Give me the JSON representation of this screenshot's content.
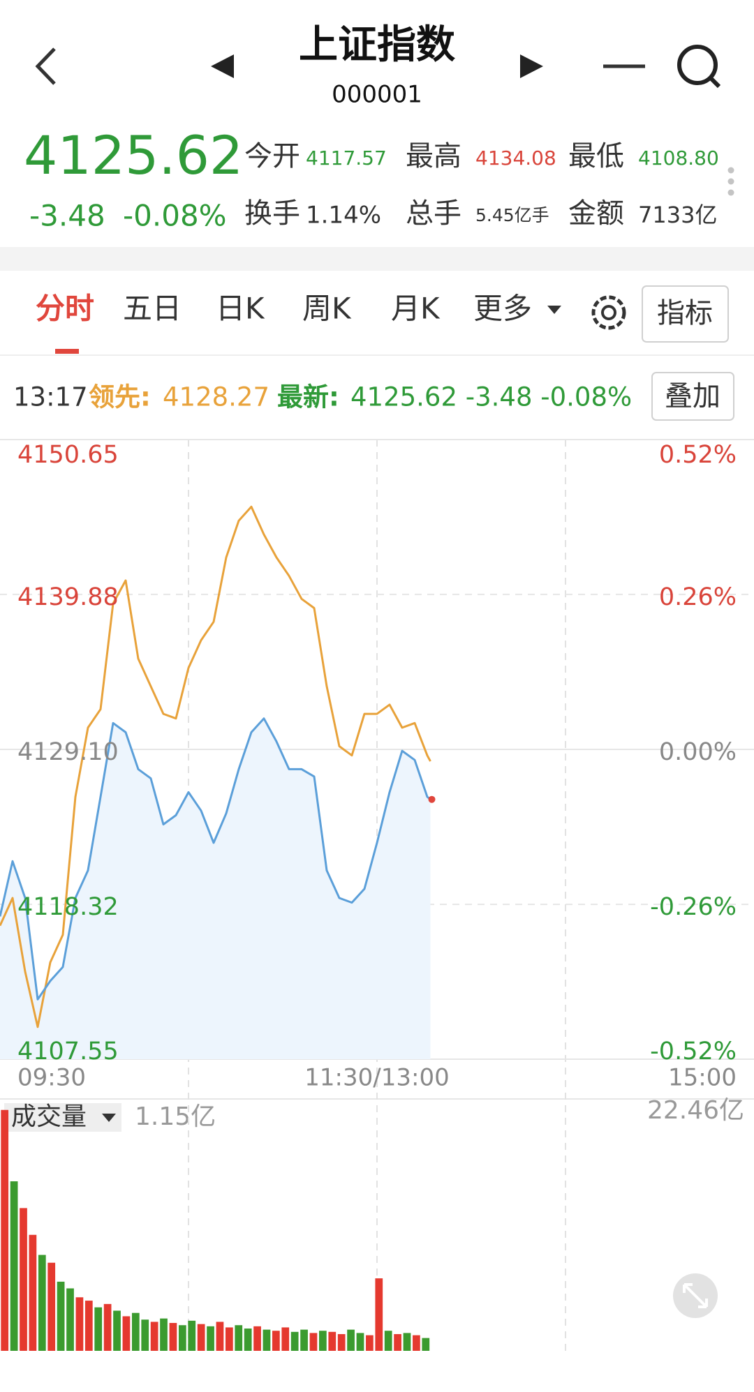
{
  "header": {
    "title": "上证指数",
    "code": "000001"
  },
  "quote": {
    "price": "4125.62",
    "change": "-3.48",
    "change_pct": "-0.08%",
    "stats": [
      {
        "label": "今开",
        "value": "4117.57"
      },
      {
        "label": "最高",
        "value": "4134.08"
      },
      {
        "label": "最低",
        "value": "4108.80"
      },
      {
        "label": "换手",
        "value": "1.14%"
      },
      {
        "label": "总手",
        "value": "5.45亿手"
      },
      {
        "label": "金额",
        "value": "7133亿"
      }
    ]
  },
  "tabs": [
    "分时",
    "五日",
    "日K",
    "周K",
    "月K",
    "更多"
  ],
  "indicator_button": "指标",
  "info": {
    "time": "13:17",
    "lead_label": "领先:",
    "lead_value": "4128.27",
    "latest_label": "最新:",
    "latest_value": "4125.62 -3.48 -0.08%",
    "overlay_button": "叠加"
  },
  "chart_data": [
    {
      "type": "line",
      "x": [
        0,
        4,
        8,
        12,
        16,
        20,
        24,
        28,
        32,
        36,
        40,
        44,
        48,
        52,
        56,
        60,
        64,
        68,
        72,
        76,
        80,
        84,
        88,
        92,
        96,
        100,
        104,
        108,
        112,
        116,
        120,
        124,
        128,
        132,
        136,
        137
      ],
      "series": [
        {
          "color": "#e8a23a",
          "values": [
            4116.84,
            4118.76,
            4113.64,
            4109.79,
            4114.28,
            4116.2,
            4125.8,
            4130.61,
            4131.89,
            4139.25,
            4140.85,
            4135.41,
            4133.49,
            4131.57,
            4131.25,
            4134.77,
            4136.69,
            4137.97,
            4142.45,
            4145.01,
            4145.98,
            4144.05,
            4142.45,
            4141.17,
            4139.57,
            4138.93,
            4133.49,
            4129.32,
            4128.68,
            4131.57,
            4131.57,
            4132.21,
            4130.61,
            4130.93,
            4128.68,
            4128.27
          ]
        },
        {
          "color": "#5b9fd9",
          "fill": "#edf5fd",
          "values": [
            4117.48,
            4121.32,
            4118.76,
            4111.71,
            4112.99,
            4113.96,
            4118.76,
            4120.68,
            4125.8,
            4130.93,
            4130.29,
            4127.72,
            4127.08,
            4123.88,
            4124.52,
            4126.12,
            4124.84,
            4122.6,
            4124.65,
            4127.72,
            4130.29,
            4131.25,
            4129.65,
            4127.72,
            4127.72,
            4127.21,
            4120.68,
            4118.76,
            4118.44,
            4119.4,
            4122.6,
            4126.12,
            4129.0,
            4128.36,
            4125.8,
            4125.62
          ]
        }
      ],
      "xlim": [
        0,
        240
      ],
      "xticks": [
        {
          "value": 0,
          "label": "09:30"
        },
        {
          "value": 60,
          "label": null
        },
        {
          "value": 120,
          "label": "11:30/13:00"
        },
        {
          "value": 180,
          "label": null
        },
        {
          "value": 240,
          "label": "15:00"
        }
      ],
      "ylim": [
        4107.55,
        4150.65
      ],
      "yticks": [
        4150.65,
        4139.88,
        {
          "value": 4129.1,
          "label": "4129.10"
        },
        4118.32,
        4107.55
      ],
      "y2lim": [
        -0.52,
        0.52
      ],
      "y2ticks": [
        {
          "value": 0.52,
          "label": "0.52%"
        },
        {
          "value": 0.26,
          "label": "0.26%"
        },
        {
          "value": 0,
          "label": "0.00%"
        },
        {
          "value": -0.26,
          "label": "-0.26%"
        },
        {
          "value": -0.52,
          "label": "-0.52%"
        }
      ],
      "grid": true
    },
    {
      "type": "bar",
      "title": "成交量",
      "current": "1.15亿",
      "values": [
        21.6,
        15.2,
        12.8,
        10.4,
        8.6,
        7.9,
        6.2,
        5.6,
        4.8,
        4.5,
        3.9,
        4.2,
        3.6,
        3.1,
        3.4,
        2.8,
        2.6,
        2.9,
        2.5,
        2.3,
        2.7,
        2.4,
        2.2,
        2.6,
        2.1,
        2.3,
        2.0,
        2.2,
        1.9,
        1.8,
        2.1,
        1.7,
        1.9,
        1.6,
        1.8,
        1.7,
        1.5,
        1.9,
        1.6,
        1.4,
        6.5,
        1.8,
        1.5,
        1.6,
        1.4,
        1.15
      ],
      "colors": [
        "#e5392f",
        "#3b9b2f",
        "#e5392f",
        "#e5392f",
        "#3b9b2f",
        "#e5392f",
        "#3b9b2f",
        "#3b9b2f",
        "#e5392f",
        "#e5392f",
        "#3b9b2f",
        "#e5392f",
        "#3b9b2f",
        "#e5392f",
        "#3b9b2f",
        "#3b9b2f",
        "#e5392f",
        "#3b9b2f",
        "#e5392f",
        "#3b9b2f",
        "#3b9b2f",
        "#e5392f",
        "#3b9b2f",
        "#e5392f",
        "#e5392f",
        "#3b9b2f",
        "#3b9b2f",
        "#e5392f",
        "#3b9b2f",
        "#e5392f",
        "#e5392f",
        "#3b9b2f",
        "#3b9b2f",
        "#e5392f",
        "#3b9b2f",
        "#e5392f",
        "#e5392f",
        "#3b9b2f",
        "#3b9b2f",
        "#e5392f",
        "#e5392f",
        "#3b9b2f",
        "#e5392f",
        "#3b9b2f",
        "#e5392f",
        "#3b9b2f"
      ],
      "ylim": [
        0,
        22.46
      ],
      "yticks": [
        {
          "value": 22.46,
          "label": "22.46亿"
        }
      ]
    }
  ]
}
